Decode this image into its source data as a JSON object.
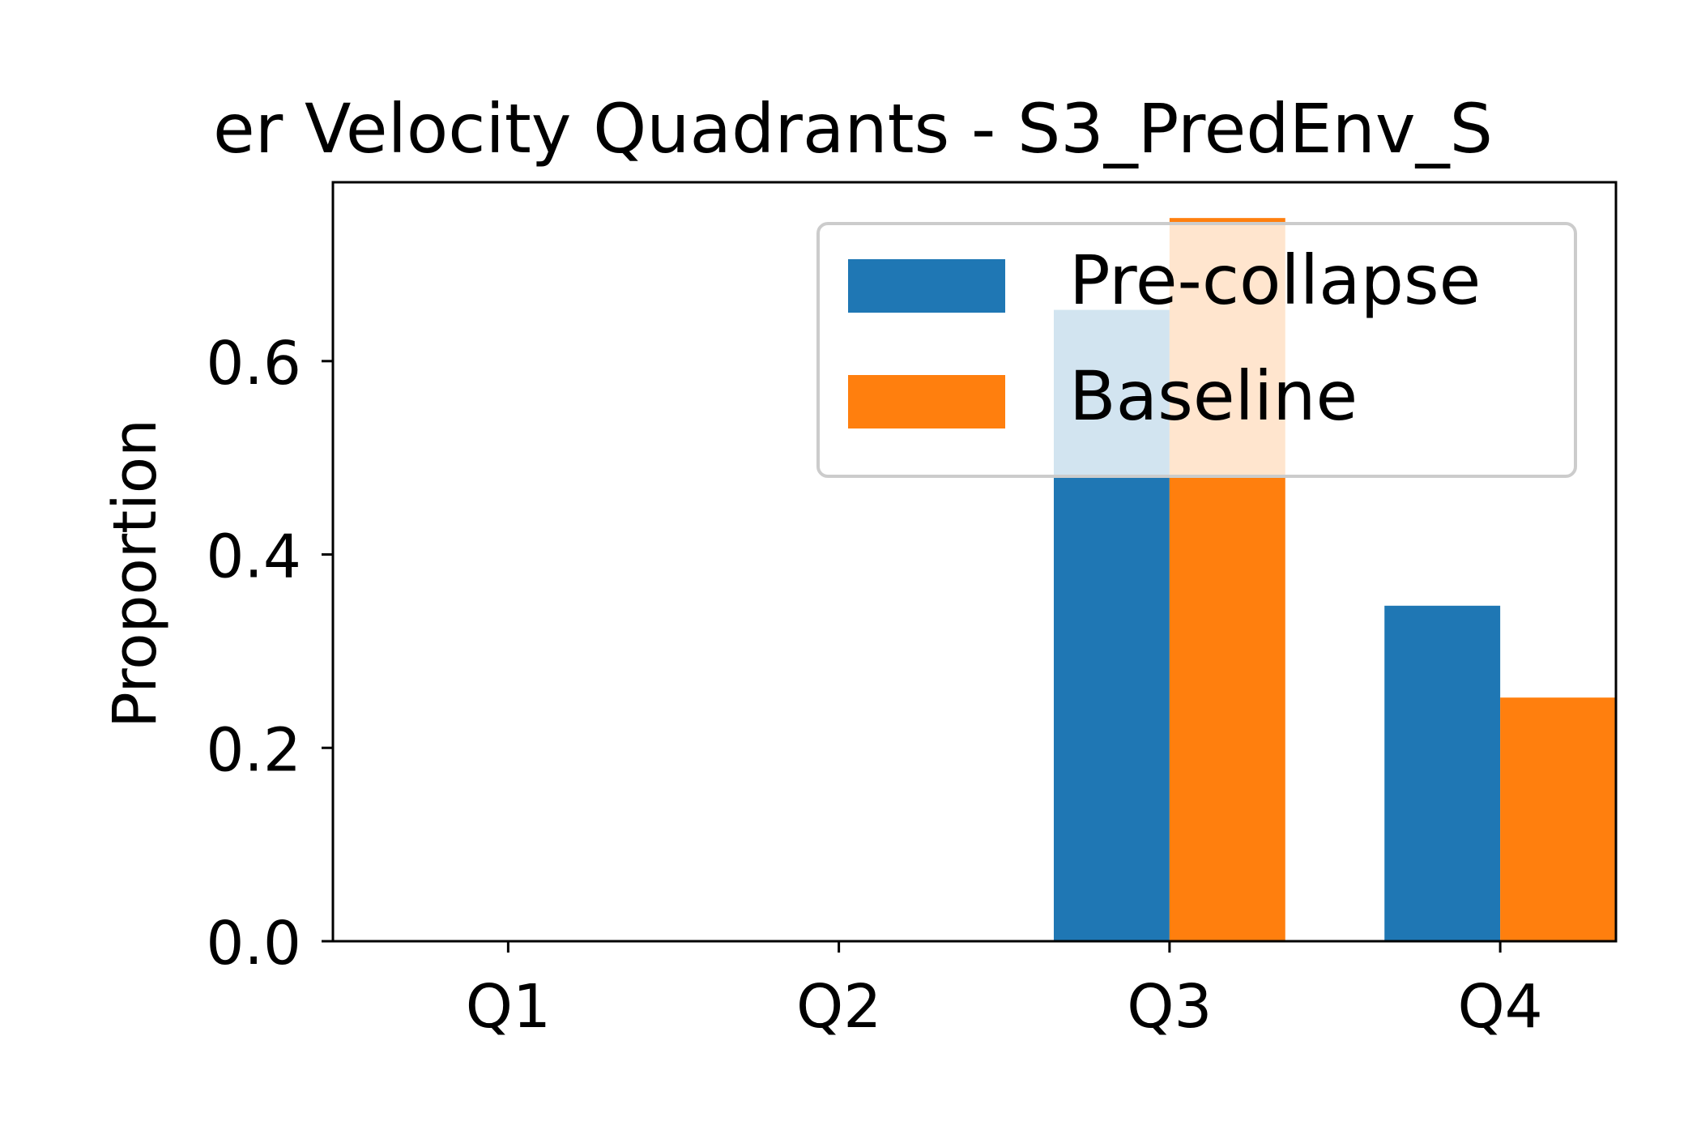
{
  "chart_data": {
    "type": "bar",
    "title": "er Velocity Quadrants - S3_PredEnv_S",
    "xlabel": "",
    "ylabel": "Proportion",
    "categories": [
      "Q1",
      "Q2",
      "Q3",
      "Q4"
    ],
    "series": [
      {
        "name": "Pre-collapse",
        "color": "#1f77b4",
        "values": [
          0.0,
          0.0,
          0.653,
          0.347
        ]
      },
      {
        "name": "Baseline",
        "color": "#ff7f0e",
        "values": [
          0.0,
          0.0,
          0.748,
          0.252
        ]
      }
    ],
    "ylim": [
      0.0,
      0.785
    ],
    "yticks": [
      0.0,
      0.2,
      0.4,
      0.6
    ],
    "ytick_labels": [
      "0.0",
      "0.2",
      "0.4",
      "0.6"
    ],
    "grid": false,
    "legend_position": "top-right"
  }
}
